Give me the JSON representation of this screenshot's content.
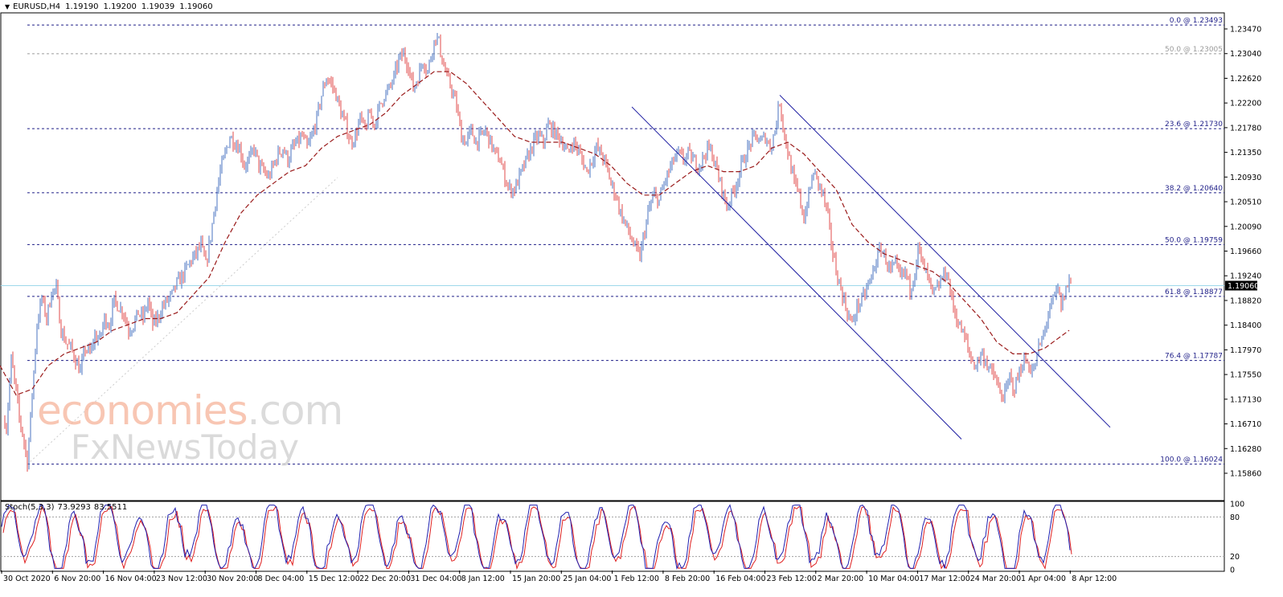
{
  "header": {
    "symbol": "EURUSD,H4",
    "open": "1.19190",
    "high": "1.19200",
    "low": "1.19039",
    "close": "1.19060"
  },
  "watermark": {
    "line1_colored": "economies",
    "line1_suffix": ".com",
    "line2": "FxNewsToday"
  },
  "indicator": {
    "name": "Stoch(5,3,3)",
    "main": "73.9293",
    "signal": "83.5511"
  },
  "colors": {
    "bull": "#4a73c2",
    "bear": "#e24b4b",
    "ma": "#9a1a1a",
    "fib": "#1f1f88",
    "fib_light": "#9a9a9a",
    "channel": "#1a1aa0",
    "current_line": "#9ed8ea",
    "stoch_main": "#2020b0",
    "stoch_signal": "#e02020"
  },
  "chart_data": [
    {
      "type": "candlestick",
      "title": "EURUSD,H4",
      "y_range": [
        1.1565,
        1.237
      ],
      "y_ticks": [
        "1.23470",
        "1.23040",
        "1.22620",
        "1.22200",
        "1.21780",
        "1.21350",
        "1.20930",
        "1.20510",
        "1.20090",
        "1.19660",
        "1.19240",
        "1.18820",
        "1.18400",
        "1.17970",
        "1.17550",
        "1.17130",
        "1.16710",
        "1.16280",
        "1.15860"
      ],
      "x_ticks": [
        "30 Oct 2020",
        "6 Nov 20:00",
        "16 Nov 04:00",
        "23 Nov 12:00",
        "30 Nov 20:00",
        "8 Dec 04:00",
        "15 Dec 12:00",
        "22 Dec 20:00",
        "31 Dec 04:00",
        "8 Jan 12:00",
        "15 Jan 20:00",
        "25 Jan 04:00",
        "1 Feb 12:00",
        "8 Feb 20:00",
        "16 Feb 04:00",
        "23 Feb 12:00",
        "2 Mar 20:00",
        "10 Mar 04:00",
        "17 Mar 12:00",
        "24 Mar 20:00",
        "1 Apr 04:00",
        "8 Apr 12:00"
      ],
      "current_price": "1.19060",
      "fibonacci_levels": [
        {
          "level": "0.0 @ 1.23493",
          "price": 1.23493
        },
        {
          "level": "50.0 @ 1.23005",
          "price": 1.23005,
          "light": true
        },
        {
          "level": "23.6 @ 1.21730",
          "price": 1.2173
        },
        {
          "level": "38.2 @ 1.20640",
          "price": 1.2064
        },
        {
          "level": "50.0 @ 1.19759",
          "price": 1.19759
        },
        {
          "level": "61.8 @ 1.18877",
          "price": 1.18877
        },
        {
          "level": "76.4 @ 1.17787",
          "price": 1.17787
        },
        {
          "level": "100.0 @ 1.16024",
          "price": 1.16024
        }
      ],
      "price_path_closes": [
        [
          0,
          1.171
        ],
        [
          8,
          1.1665
        ],
        [
          14,
          1.178
        ],
        [
          20,
          1.1725
        ],
        [
          24,
          1.168
        ],
        [
          28,
          1.1655
        ],
        [
          34,
          1.1605
        ],
        [
          40,
          1.172
        ],
        [
          46,
          1.184
        ],
        [
          52,
          1.1885
        ],
        [
          58,
          1.185
        ],
        [
          64,
          1.1895
        ],
        [
          70,
          1.19
        ],
        [
          76,
          1.183
        ],
        [
          82,
          1.181
        ],
        [
          88,
          1.18
        ],
        [
          94,
          1.178
        ],
        [
          100,
          1.176
        ],
        [
          106,
          1.18
        ],
        [
          112,
          1.179
        ],
        [
          118,
          1.182
        ],
        [
          124,
          1.1815
        ],
        [
          130,
          1.185
        ],
        [
          136,
          1.184
        ],
        [
          142,
          1.188
        ],
        [
          148,
          1.187
        ],
        [
          154,
          1.186
        ],
        [
          160,
          1.183
        ],
        [
          166,
          1.184
        ],
        [
          172,
          1.186
        ],
        [
          178,
          1.185
        ],
        [
          184,
          1.188
        ],
        [
          190,
          1.184
        ],
        [
          196,
          1.185
        ],
        [
          202,
          1.187
        ],
        [
          208,
          1.188
        ],
        [
          214,
          1.189
        ],
        [
          220,
          1.191
        ],
        [
          226,
          1.192
        ],
        [
          232,
          1.1935
        ],
        [
          238,
          1.195
        ],
        [
          244,
          1.196
        ],
        [
          250,
          1.1975
        ],
        [
          256,
          1.194
        ],
        [
          262,
          1.199
        ],
        [
          268,
          1.205
        ],
        [
          274,
          1.21
        ],
        [
          280,
          1.213
        ],
        [
          286,
          1.216
        ],
        [
          292,
          1.215
        ],
        [
          298,
          1.214
        ],
        [
          304,
          1.211
        ],
        [
          310,
          1.212
        ],
        [
          316,
          1.214
        ],
        [
          322,
          1.211
        ],
        [
          328,
          1.21
        ],
        [
          334,
          1.209
        ],
        [
          340,
          1.211
        ],
        [
          346,
          1.213
        ],
        [
          352,
          1.214
        ],
        [
          358,
          1.212
        ],
        [
          364,
          1.214
        ],
        [
          370,
          1.215
        ],
        [
          376,
          1.216
        ],
        [
          382,
          1.214
        ],
        [
          388,
          1.216
        ],
        [
          394,
          1.219
        ],
        [
          400,
          1.223
        ],
        [
          406,
          1.226
        ],
        [
          412,
          1.225
        ],
        [
          418,
          1.223
        ],
        [
          424,
          1.22
        ],
        [
          430,
          1.218
        ],
        [
          436,
          1.215
        ],
        [
          442,
          1.216
        ],
        [
          448,
          1.219
        ],
        [
          454,
          1.217
        ],
        [
          460,
          1.22
        ],
        [
          466,
          1.218
        ],
        [
          472,
          1.221
        ],
        [
          478,
          1.223
        ],
        [
          484,
          1.224
        ],
        [
          490,
          1.226
        ],
        [
          496,
          1.229
        ],
        [
          502,
          1.23
        ],
        [
          508,
          1.228
        ],
        [
          514,
          1.224
        ],
        [
          520,
          1.226
        ],
        [
          526,
          1.229
        ],
        [
          532,
          1.227
        ],
        [
          538,
          1.231
        ],
        [
          542,
          1.233
        ],
        [
          546,
          1.232
        ],
        [
          550,
          1.229
        ],
        [
          556,
          1.226
        ],
        [
          562,
          1.224
        ],
        [
          568,
          1.221
        ],
        [
          574,
          1.216
        ],
        [
          580,
          1.215
        ],
        [
          586,
          1.217
        ],
        [
          592,
          1.215
        ],
        [
          598,
          1.216
        ],
        [
          604,
          1.217
        ],
        [
          610,
          1.215
        ],
        [
          616,
          1.213
        ],
        [
          622,
          1.212
        ],
        [
          628,
          1.209
        ],
        [
          634,
          1.207
        ],
        [
          640,
          1.207
        ],
        [
          646,
          1.209
        ],
        [
          652,
          1.211
        ],
        [
          658,
          1.213
        ],
        [
          664,
          1.215
        ],
        [
          670,
          1.216
        ],
        [
          676,
          1.215
        ],
        [
          682,
          1.218
        ],
        [
          688,
          1.217
        ],
        [
          694,
          1.216
        ],
        [
          700,
          1.215
        ],
        [
          706,
          1.213
        ],
        [
          712,
          1.215
        ],
        [
          718,
          1.214
        ],
        [
          724,
          1.212
        ],
        [
          730,
          1.21
        ],
        [
          736,
          1.212
        ],
        [
          742,
          1.214
        ],
        [
          748,
          1.213
        ],
        [
          754,
          1.211
        ],
        [
          760,
          1.208
        ],
        [
          766,
          1.206
        ],
        [
          772,
          1.203
        ],
        [
          778,
          1.201
        ],
        [
          784,
          1.199
        ],
        [
          790,
          1.197
        ],
        [
          796,
          1.1955
        ],
        [
          802,
          1.2
        ],
        [
          808,
          1.204
        ],
        [
          814,
          1.206
        ],
        [
          820,
          1.205
        ],
        [
          826,
          1.208
        ],
        [
          832,
          1.21
        ],
        [
          838,
          1.212
        ],
        [
          844,
          1.213
        ],
        [
          850,
          1.212
        ],
        [
          856,
          1.213
        ],
        [
          862,
          1.212
        ],
        [
          868,
          1.211
        ],
        [
          874,
          1.212
        ],
        [
          880,
          1.214
        ],
        [
          886,
          1.213
        ],
        [
          892,
          1.21
        ],
        [
          898,
          1.207
        ],
        [
          904,
          1.204
        ],
        [
          910,
          1.206
        ],
        [
          916,
          1.208
        ],
        [
          922,
          1.211
        ],
        [
          928,
          1.213
        ],
        [
          934,
          1.215
        ],
        [
          940,
          1.216
        ],
        [
          946,
          1.215
        ],
        [
          952,
          1.216
        ],
        [
          958,
          1.214
        ],
        [
          964,
          1.217
        ],
        [
          970,
          1.222
        ],
        [
          976,
          1.216
        ],
        [
          982,
          1.212
        ],
        [
          988,
          1.208
        ],
        [
          994,
          1.206
        ],
        [
          1000,
          1.202
        ],
        [
          1006,
          1.206
        ],
        [
          1012,
          1.21
        ],
        [
          1018,
          1.208
        ],
        [
          1024,
          1.206
        ],
        [
          1030,
          1.202
        ],
        [
          1036,
          1.196
        ],
        [
          1042,
          1.192
        ],
        [
          1048,
          1.189
        ],
        [
          1054,
          1.186
        ],
        [
          1060,
          1.184
        ],
        [
          1066,
          1.187
        ],
        [
          1072,
          1.188
        ],
        [
          1078,
          1.19
        ],
        [
          1084,
          1.192
        ],
        [
          1090,
          1.195
        ],
        [
          1096,
          1.197
        ],
        [
          1102,
          1.195
        ],
        [
          1108,
          1.193
        ],
        [
          1114,
          1.194
        ],
        [
          1120,
          1.192
        ],
        [
          1126,
          1.193
        ],
        [
          1132,
          1.19
        ],
        [
          1138,
          1.193
        ],
        [
          1142,
          1.197
        ],
        [
          1148,
          1.194
        ],
        [
          1154,
          1.192
        ],
        [
          1160,
          1.189
        ],
        [
          1166,
          1.19
        ],
        [
          1172,
          1.192
        ],
        [
          1178,
          1.193
        ],
        [
          1184,
          1.188
        ],
        [
          1190,
          1.185
        ],
        [
          1196,
          1.183
        ],
        [
          1202,
          1.181
        ],
        [
          1208,
          1.178
        ],
        [
          1214,
          1.177
        ],
        [
          1220,
          1.179
        ],
        [
          1226,
          1.178
        ],
        [
          1232,
          1.176
        ],
        [
          1238,
          1.175
        ],
        [
          1244,
          1.172
        ],
        [
          1250,
          1.172
        ],
        [
          1256,
          1.175
        ],
        [
          1262,
          1.173
        ],
        [
          1268,
          1.176
        ],
        [
          1274,
          1.178
        ],
        [
          1280,
          1.177
        ],
        [
          1286,
          1.176
        ],
        [
          1292,
          1.18
        ],
        [
          1298,
          1.182
        ],
        [
          1304,
          1.186
        ],
        [
          1310,
          1.188
        ],
        [
          1316,
          1.19
        ],
        [
          1320,
          1.187
        ],
        [
          1326,
          1.19
        ],
        [
          1330,
          1.1915
        ],
        [
          1334,
          1.1906
        ]
      ],
      "ma_path": [
        [
          0,
          1.177
        ],
        [
          20,
          1.172
        ],
        [
          40,
          1.173
        ],
        [
          60,
          1.177
        ],
        [
          80,
          1.179
        ],
        [
          100,
          1.18
        ],
        [
          120,
          1.181
        ],
        [
          140,
          1.183
        ],
        [
          160,
          1.184
        ],
        [
          180,
          1.185
        ],
        [
          200,
          1.185
        ],
        [
          220,
          1.186
        ],
        [
          240,
          1.189
        ],
        [
          260,
          1.192
        ],
        [
          280,
          1.198
        ],
        [
          300,
          1.203
        ],
        [
          320,
          1.206
        ],
        [
          340,
          1.208
        ],
        [
          360,
          1.21
        ],
        [
          380,
          1.211
        ],
        [
          400,
          1.214
        ],
        [
          420,
          1.216
        ],
        [
          440,
          1.217
        ],
        [
          460,
          1.218
        ],
        [
          480,
          1.22
        ],
        [
          500,
          1.223
        ],
        [
          520,
          1.225
        ],
        [
          540,
          1.227
        ],
        [
          560,
          1.227
        ],
        [
          580,
          1.225
        ],
        [
          600,
          1.222
        ],
        [
          620,
          1.219
        ],
        [
          640,
          1.216
        ],
        [
          660,
          1.215
        ],
        [
          680,
          1.215
        ],
        [
          700,
          1.215
        ],
        [
          720,
          1.214
        ],
        [
          740,
          1.213
        ],
        [
          760,
          1.211
        ],
        [
          780,
          1.208
        ],
        [
          800,
          1.206
        ],
        [
          820,
          1.206
        ],
        [
          840,
          1.208
        ],
        [
          860,
          1.21
        ],
        [
          880,
          1.211
        ],
        [
          900,
          1.21
        ],
        [
          920,
          1.21
        ],
        [
          940,
          1.211
        ],
        [
          960,
          1.214
        ],
        [
          980,
          1.215
        ],
        [
          1000,
          1.213
        ],
        [
          1020,
          1.21
        ],
        [
          1040,
          1.207
        ],
        [
          1060,
          1.201
        ],
        [
          1080,
          1.198
        ],
        [
          1100,
          1.196
        ],
        [
          1120,
          1.195
        ],
        [
          1140,
          1.194
        ],
        [
          1160,
          1.193
        ],
        [
          1180,
          1.191
        ],
        [
          1200,
          1.188
        ],
        [
          1220,
          1.185
        ],
        [
          1240,
          1.181
        ],
        [
          1260,
          1.179
        ],
        [
          1280,
          1.179
        ],
        [
          1300,
          1.18
        ],
        [
          1320,
          1.182
        ],
        [
          1330,
          1.183
        ]
      ],
      "channel_lines": [
        [
          [
            786,
            1.221
          ],
          [
            1196,
            1.1645
          ]
        ],
        [
          [
            970,
            1.223
          ],
          [
            1381,
            1.1665
          ]
        ]
      ]
    },
    {
      "type": "line",
      "title": "Stoch(5,3,3)",
      "y_range": [
        0,
        100
      ],
      "y_ticks": [
        "100",
        "80",
        "20",
        "0"
      ],
      "levels": [
        80,
        20
      ]
    }
  ]
}
